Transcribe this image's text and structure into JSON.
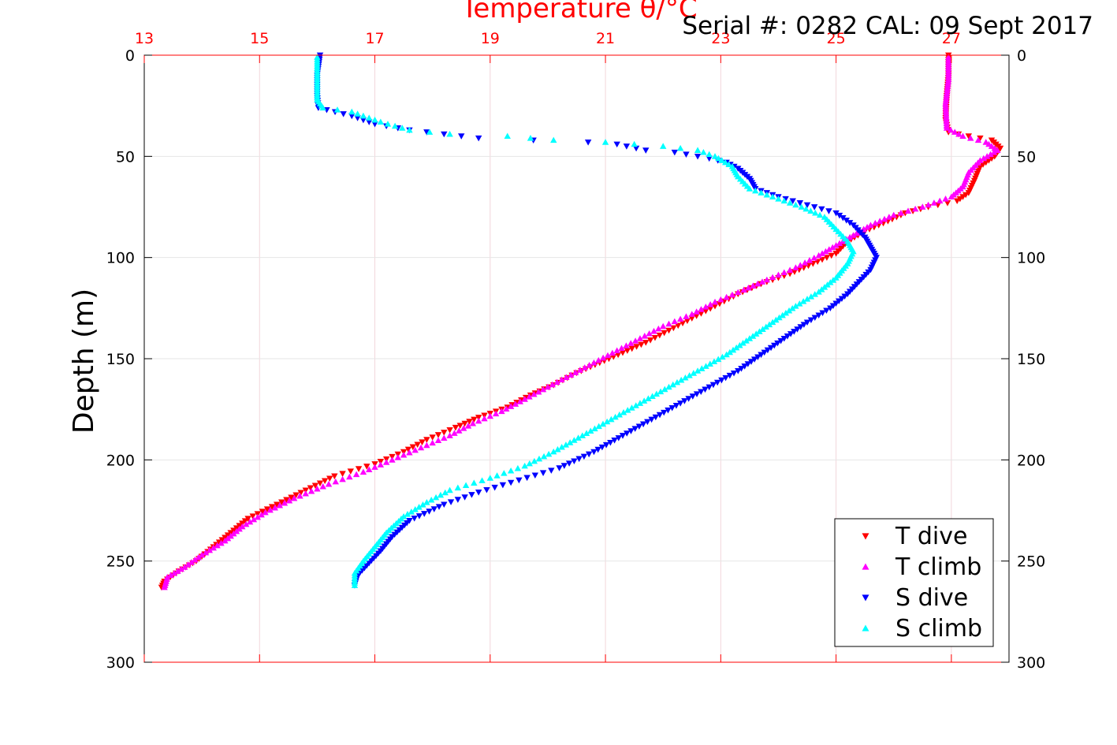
{
  "header": {
    "serial_text": "Serial #: 0282  CAL: 09 Sept 2017"
  },
  "chart_data": {
    "type": "scatter",
    "title": "Temperature θ/°C",
    "xlabel_top": "Temperature θ/°C",
    "ylabel": "Depth (m)",
    "xlim": [
      13,
      28
    ],
    "ylim": [
      300,
      0
    ],
    "x_ticks": [
      "13",
      "15",
      "17",
      "19",
      "21",
      "23",
      "25",
      "27"
    ],
    "y_ticks": [
      "0",
      "50",
      "100",
      "150",
      "200",
      "250",
      "300"
    ],
    "grid": true,
    "legend_position": "bottom-right",
    "colors": {
      "axis_top": "#ff0000",
      "grid": "#e6e6e6"
    },
    "series": [
      {
        "name": "T dive",
        "color": "#ff0000",
        "marker": "triangle-down",
        "points": [
          [
            26.95,
            0
          ],
          [
            26.95,
            10
          ],
          [
            26.92,
            20
          ],
          [
            26.9,
            32
          ],
          [
            26.95,
            38
          ],
          [
            27.3,
            40
          ],
          [
            27.7,
            42
          ],
          [
            27.85,
            46
          ],
          [
            27.75,
            50
          ],
          [
            27.5,
            55
          ],
          [
            27.4,
            62
          ],
          [
            27.3,
            68
          ],
          [
            27.1,
            72
          ],
          [
            26.6,
            75
          ],
          [
            26.2,
            78
          ],
          [
            25.9,
            82
          ],
          [
            25.5,
            87
          ],
          [
            25.2,
            92
          ],
          [
            25.0,
            98
          ],
          [
            24.6,
            103
          ],
          [
            24.2,
            108
          ],
          [
            23.7,
            113
          ],
          [
            23.3,
            118
          ],
          [
            22.9,
            124
          ],
          [
            22.5,
            130
          ],
          [
            22.1,
            136
          ],
          [
            21.7,
            142
          ],
          [
            21.3,
            147
          ],
          [
            20.9,
            152
          ],
          [
            20.5,
            157
          ],
          [
            20.1,
            163
          ],
          [
            19.7,
            168
          ],
          [
            19.3,
            174
          ],
          [
            18.8,
            179
          ],
          [
            18.4,
            184
          ],
          [
            17.9,
            190
          ],
          [
            17.5,
            196
          ],
          [
            17.0,
            202
          ],
          [
            16.3,
            208
          ],
          [
            15.8,
            215
          ],
          [
            15.3,
            222
          ],
          [
            14.8,
            229
          ],
          [
            14.5,
            236
          ],
          [
            14.2,
            243
          ],
          [
            13.9,
            250
          ],
          [
            13.6,
            255
          ],
          [
            13.35,
            260
          ],
          [
            13.3,
            263
          ]
        ]
      },
      {
        "name": "T climb",
        "color": "#ff00ff",
        "marker": "triangle-up",
        "points": [
          [
            26.95,
            1
          ],
          [
            26.95,
            12
          ],
          [
            26.9,
            24
          ],
          [
            26.92,
            36
          ],
          [
            27.2,
            40
          ],
          [
            27.6,
            43
          ],
          [
            27.8,
            47
          ],
          [
            27.5,
            52
          ],
          [
            27.3,
            58
          ],
          [
            27.2,
            65
          ],
          [
            27.0,
            70
          ],
          [
            26.5,
            75
          ],
          [
            26.0,
            79
          ],
          [
            25.6,
            84
          ],
          [
            25.3,
            89
          ],
          [
            25.0,
            94
          ],
          [
            24.7,
            99
          ],
          [
            24.3,
            105
          ],
          [
            23.8,
            111
          ],
          [
            23.4,
            116
          ],
          [
            22.9,
            122
          ],
          [
            22.5,
            128
          ],
          [
            22.0,
            134
          ],
          [
            21.6,
            140
          ],
          [
            21.2,
            146
          ],
          [
            20.8,
            152
          ],
          [
            20.4,
            158
          ],
          [
            20.0,
            164
          ],
          [
            19.6,
            170
          ],
          [
            19.2,
            176
          ],
          [
            18.7,
            182
          ],
          [
            18.3,
            188
          ],
          [
            17.8,
            194
          ],
          [
            17.3,
            200
          ],
          [
            16.8,
            206
          ],
          [
            16.2,
            212
          ],
          [
            15.6,
            219
          ],
          [
            15.1,
            226
          ],
          [
            14.7,
            233
          ],
          [
            14.4,
            240
          ],
          [
            14.0,
            247
          ],
          [
            13.7,
            253
          ],
          [
            13.4,
            258
          ],
          [
            13.35,
            263
          ]
        ]
      },
      {
        "name": "S dive",
        "color": "#0000ff",
        "marker": "triangle-down",
        "points": [
          [
            16.05,
            0
          ],
          [
            16.0,
            10
          ],
          [
            16.0,
            20
          ],
          [
            16.02,
            26
          ],
          [
            16.6,
            30
          ],
          [
            17.0,
            34
          ],
          [
            17.6,
            37
          ],
          [
            18.8,
            41
          ],
          [
            20.7,
            43
          ],
          [
            21.2,
            44
          ],
          [
            21.7,
            47
          ],
          [
            22.2,
            48
          ],
          [
            22.8,
            51
          ],
          [
            23.1,
            53
          ],
          [
            23.3,
            56
          ],
          [
            23.5,
            61
          ],
          [
            23.6,
            66
          ],
          [
            24.0,
            70
          ],
          [
            24.5,
            74
          ],
          [
            25.0,
            78
          ],
          [
            25.3,
            84
          ],
          [
            25.5,
            90
          ],
          [
            25.6,
            95
          ],
          [
            25.7,
            100
          ],
          [
            25.6,
            106
          ],
          [
            25.4,
            112
          ],
          [
            25.2,
            118
          ],
          [
            24.9,
            125
          ],
          [
            24.5,
            132
          ],
          [
            24.1,
            140
          ],
          [
            23.7,
            148
          ],
          [
            23.3,
            156
          ],
          [
            22.8,
            164
          ],
          [
            22.3,
            172
          ],
          [
            21.8,
            180
          ],
          [
            21.3,
            188
          ],
          [
            20.8,
            196
          ],
          [
            20.2,
            204
          ],
          [
            19.5,
            210
          ],
          [
            18.8,
            216
          ],
          [
            18.2,
            222
          ],
          [
            17.6,
            230
          ],
          [
            17.3,
            238
          ],
          [
            17.1,
            245
          ],
          [
            16.9,
            251
          ],
          [
            16.7,
            257
          ],
          [
            16.65,
            262
          ]
        ]
      },
      {
        "name": "S climb",
        "color": "#00ffff",
        "marker": "triangle-up",
        "points": [
          [
            16.0,
            1
          ],
          [
            16.0,
            12
          ],
          [
            16.0,
            22
          ],
          [
            16.1,
            26
          ],
          [
            16.6,
            28
          ],
          [
            17.1,
            33
          ],
          [
            17.6,
            37
          ],
          [
            18.3,
            39
          ],
          [
            19.3,
            40
          ],
          [
            20.1,
            42
          ],
          [
            21.0,
            43
          ],
          [
            22.0,
            45
          ],
          [
            22.6,
            47
          ],
          [
            22.9,
            50
          ],
          [
            23.2,
            55
          ],
          [
            23.3,
            60
          ],
          [
            23.5,
            66
          ],
          [
            23.9,
            70
          ],
          [
            24.4,
            75
          ],
          [
            24.8,
            80
          ],
          [
            25.0,
            86
          ],
          [
            25.2,
            92
          ],
          [
            25.3,
            97
          ],
          [
            25.2,
            103
          ],
          [
            25.0,
            110
          ],
          [
            24.7,
            117
          ],
          [
            24.3,
            124
          ],
          [
            23.9,
            132
          ],
          [
            23.5,
            140
          ],
          [
            23.1,
            148
          ],
          [
            22.6,
            156
          ],
          [
            22.1,
            164
          ],
          [
            21.6,
            172
          ],
          [
            21.1,
            180
          ],
          [
            20.6,
            188
          ],
          [
            20.1,
            196
          ],
          [
            19.6,
            203
          ],
          [
            19.0,
            209
          ],
          [
            18.3,
            215
          ],
          [
            17.9,
            221
          ],
          [
            17.5,
            228
          ],
          [
            17.2,
            236
          ],
          [
            17.0,
            243
          ],
          [
            16.8,
            250
          ],
          [
            16.65,
            256
          ],
          [
            16.65,
            262
          ]
        ]
      }
    ]
  }
}
